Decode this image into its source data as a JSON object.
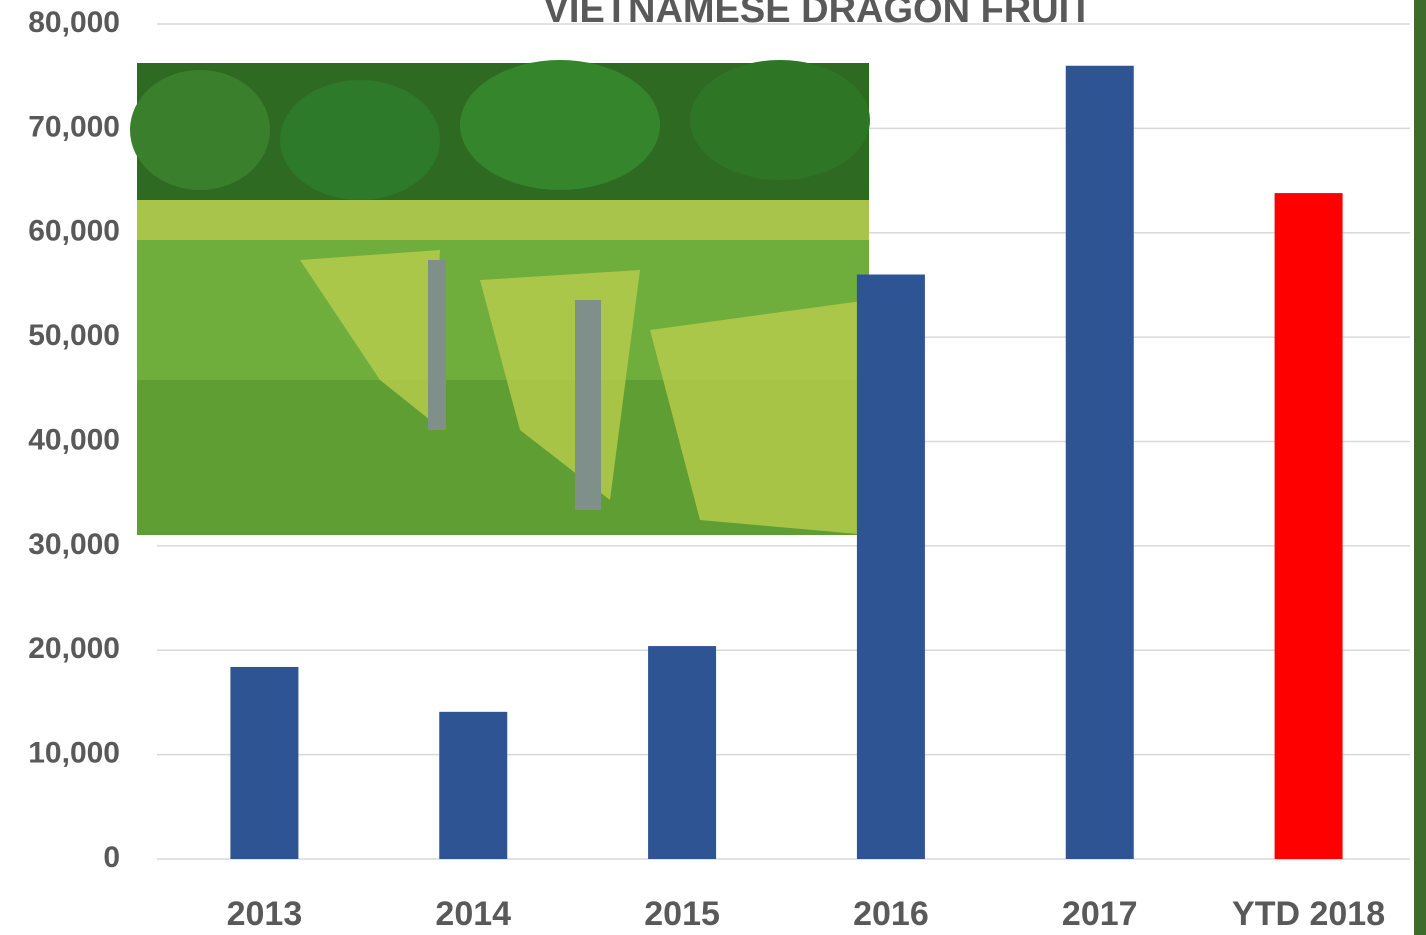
{
  "chart_data": {
    "type": "bar",
    "title": "VIETNAMESE DRAGON FRUIT",
    "categories": [
      "2013",
      "2014",
      "2015",
      "2016",
      "2017",
      "YTD 2018"
    ],
    "values": [
      18400,
      14100,
      20400,
      56000,
      76000,
      63800
    ],
    "colors": [
      "#2e5494",
      "#2e5494",
      "#2e5494",
      "#2e5494",
      "#2e5494",
      "#ff0000"
    ],
    "ylim": [
      0,
      80000
    ],
    "yticks": [
      0,
      {
        "value": 10000,
        "label": "10,000"
      },
      {
        "value": 20000,
        "label": "20,000"
      },
      {
        "value": 30000,
        "label": "30,000"
      },
      {
        "value": 40000,
        "label": "40,000"
      },
      {
        "value": 50000,
        "label": "50,000"
      },
      {
        "value": 60000,
        "label": "60,000"
      },
      {
        "value": 70000,
        "label": "70,000"
      },
      {
        "value": 80000,
        "label": "80,000"
      }
    ],
    "grid": true
  }
}
